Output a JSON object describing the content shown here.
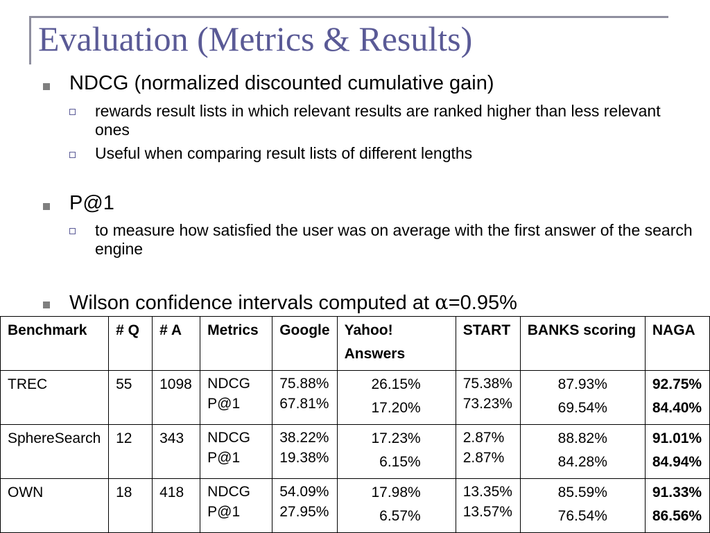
{
  "slide": {
    "title": "Evaluation (Metrics & Results)",
    "bullets": [
      {
        "text": "NDCG (normalized discounted cumulative gain)",
        "subs": [
          "rewards result lists in which relevant results are ranked higher than less relevant ones",
          "Useful when comparing result lists of different lengths"
        ]
      },
      {
        "text": "P@1",
        "subs": [
          "to measure how satisfied the user was on average with the first answer of the search engine"
        ]
      },
      {
        "text_before": "Wilson confidence intervals computed at ",
        "alpha": "α",
        "text_after": "=0.95%"
      }
    ]
  },
  "table": {
    "headers": {
      "benchmark": "Benchmark",
      "q": "# Q",
      "a": "# A",
      "metrics": "Metrics",
      "google": "Google",
      "yahoo_1": "Yahoo!",
      "yahoo_2": "Answers",
      "start": "START",
      "banks": "BANKS scoring",
      "naga": "NAGA"
    },
    "rows": [
      {
        "benchmark": "TREC",
        "q": "55",
        "a": "1098",
        "metric1": "NDCG",
        "metric2": "P@1",
        "google1": "75.88%",
        "google2": "67.81%",
        "yahoo1": "26.15%",
        "yahoo2": "17.20%",
        "start1": "75.38%",
        "start2": "73.23%",
        "banks1": "87.93%",
        "banks2": "69.54%",
        "naga1": "92.75%",
        "naga2": "84.40%"
      },
      {
        "benchmark": "SphereSearch",
        "q": "12",
        "a": "343",
        "metric1": "NDCG",
        "metric2": "P@1",
        "google1": "38.22%",
        "google2": "19.38%",
        "yahoo1": "17.23%",
        "yahoo2": "6.15%",
        "start1": "2.87%",
        "start2": "2.87%",
        "banks1": "88.82%",
        "banks2": "84.28%",
        "naga1": "91.01%",
        "naga2": "84.94%"
      },
      {
        "benchmark": "OWN",
        "q": "18",
        "a": "418",
        "metric1": "NDCG",
        "metric2": "P@1",
        "google1": "54.09%",
        "google2": "27.95%",
        "yahoo1": "17.98%",
        "yahoo2": "6.57%",
        "start1": "13.35%",
        "start2": "13.57%",
        "banks1": "85.59%",
        "banks2": "76.54%",
        "naga1": "91.33%",
        "naga2": "86.56%"
      }
    ]
  }
}
